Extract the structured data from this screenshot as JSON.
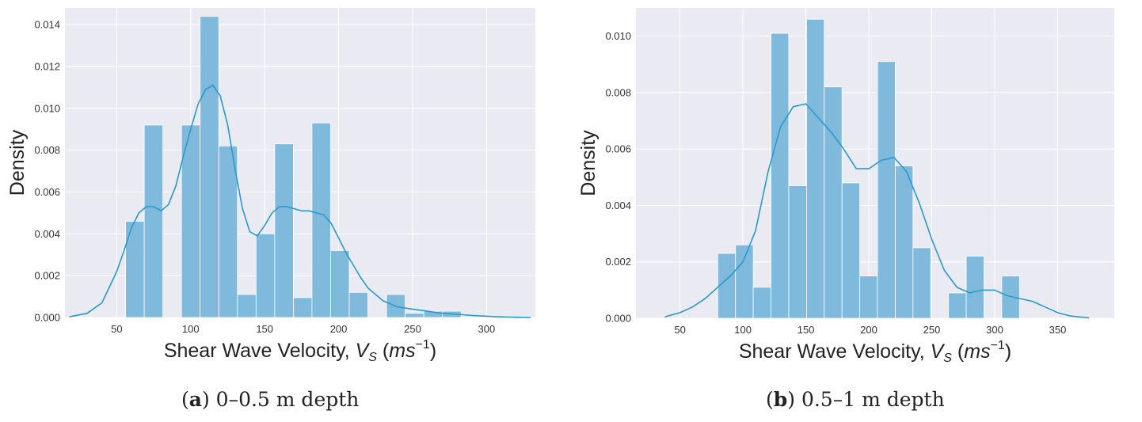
{
  "chart_data": [
    {
      "type": "bar",
      "caption_letter": "a",
      "caption_text": "0–0.5 m depth",
      "ylabel": "Density",
      "xlabel": "Shear Wave Velocity, ",
      "xlabel_symbol": "V",
      "xlabel_sub": "S",
      "xlabel_unit": "ms",
      "xlabel_exp": "−1",
      "xlim": [
        15,
        333
      ],
      "ylim": [
        0,
        0.0148
      ],
      "xticks": [
        50,
        100,
        150,
        200,
        250,
        300
      ],
      "yticks": [
        0.0,
        0.002,
        0.004,
        0.006,
        0.008,
        0.01,
        0.012,
        0.014
      ],
      "ytick_labels": [
        "0.000",
        "0.002",
        "0.004",
        "0.006",
        "0.008",
        "0.010",
        "0.012",
        "0.014"
      ],
      "grid": true,
      "bar_color": "#7fb9dc",
      "kde_color": "#2a9ac9",
      "bin_edges": [
        56,
        68.6,
        81.2,
        93.8,
        106.4,
        119,
        131.6,
        144.2,
        156.8,
        169.4,
        182,
        194.6,
        207.2,
        219.8,
        232.4,
        245,
        257.6,
        270.2,
        282.8,
        295.4
      ],
      "values": [
        0.0046,
        0.0092,
        0.0,
        0.0092,
        0.0144,
        0.0082,
        0.0011,
        0.004,
        0.0083,
        0.00095,
        0.0093,
        0.0032,
        0.0012,
        0.0,
        0.0011,
        0.0002,
        0.0003,
        0.0003,
        0.0
      ],
      "kde": {
        "x": [
          18,
          30,
          40,
          50,
          55,
          60,
          65,
          70,
          75,
          80,
          85,
          90,
          95,
          100,
          105,
          110,
          115,
          120,
          125,
          130,
          135,
          140,
          145,
          150,
          155,
          160,
          165,
          170,
          175,
          180,
          185,
          190,
          195,
          200,
          205,
          210,
          215,
          220,
          230,
          240,
          250,
          260,
          270,
          280,
          290,
          300,
          310,
          320,
          330
        ],
        "y": [
          3e-05,
          0.0002,
          0.0007,
          0.0022,
          0.0032,
          0.0043,
          0.005,
          0.0053,
          0.0053,
          0.0051,
          0.0054,
          0.0063,
          0.0077,
          0.009,
          0.0102,
          0.0109,
          0.0111,
          0.0106,
          0.0092,
          0.0071,
          0.0052,
          0.0041,
          0.0039,
          0.0044,
          0.005,
          0.0053,
          0.0053,
          0.0052,
          0.0051,
          0.0051,
          0.005,
          0.0049,
          0.0045,
          0.0038,
          0.0031,
          0.0025,
          0.0019,
          0.0014,
          0.0008,
          0.0005,
          0.0004,
          0.0003,
          0.0002,
          0.00015,
          0.0001,
          6e-05,
          3e-05,
          1e-05,
          0.0
        ]
      }
    },
    {
      "type": "bar",
      "caption_letter": "b",
      "caption_text": "0.5–1 m depth",
      "ylabel": "Density",
      "xlabel": "Shear Wave Velocity, ",
      "xlabel_symbol": "V",
      "xlabel_sub": "S",
      "xlabel_unit": "ms",
      "xlabel_exp": "−1",
      "xlim": [
        15,
        395
      ],
      "ylim": [
        0,
        0.011
      ],
      "xticks": [
        50,
        100,
        150,
        200,
        250,
        300,
        350
      ],
      "yticks": [
        0.0,
        0.002,
        0.004,
        0.006,
        0.008,
        0.01
      ],
      "ytick_labels": [
        "0.000",
        "0.002",
        "0.004",
        "0.006",
        "0.008",
        "0.010"
      ],
      "grid": true,
      "bar_color": "#7fb9dc",
      "kde_color": "#2a9ac9",
      "bin_edges": [
        80,
        94.1,
        108.2,
        122.3,
        136.4,
        150.5,
        164.6,
        178.7,
        192.8,
        206.9,
        221,
        235.1,
        249.2,
        263.3,
        277.4,
        291.5,
        305.6,
        319.7,
        333.8
      ],
      "values": [
        0.0023,
        0.0026,
        0.0011,
        0.0101,
        0.0047,
        0.0106,
        0.0082,
        0.0048,
        0.0015,
        0.0091,
        0.0054,
        0.0025,
        0.0,
        0.0009,
        0.0022,
        0.0,
        0.0015,
        0.0
      ],
      "kde": {
        "x": [
          38,
          50,
          60,
          70,
          80,
          90,
          100,
          110,
          120,
          130,
          140,
          150,
          160,
          170,
          180,
          190,
          200,
          210,
          220,
          230,
          240,
          250,
          260,
          270,
          280,
          290,
          300,
          310,
          320,
          330,
          340,
          350,
          360,
          375
        ],
        "y": [
          5e-05,
          0.0002,
          0.0004,
          0.0007,
          0.0011,
          0.0015,
          0.002,
          0.0031,
          0.0052,
          0.0068,
          0.0075,
          0.0076,
          0.0071,
          0.0066,
          0.006,
          0.0053,
          0.0053,
          0.0056,
          0.0057,
          0.0052,
          0.0041,
          0.0028,
          0.0017,
          0.0011,
          0.0009,
          0.001,
          0.001,
          0.0008,
          0.0007,
          0.0006,
          0.0004,
          0.0002,
          8e-05,
          1e-05
        ]
      }
    }
  ]
}
